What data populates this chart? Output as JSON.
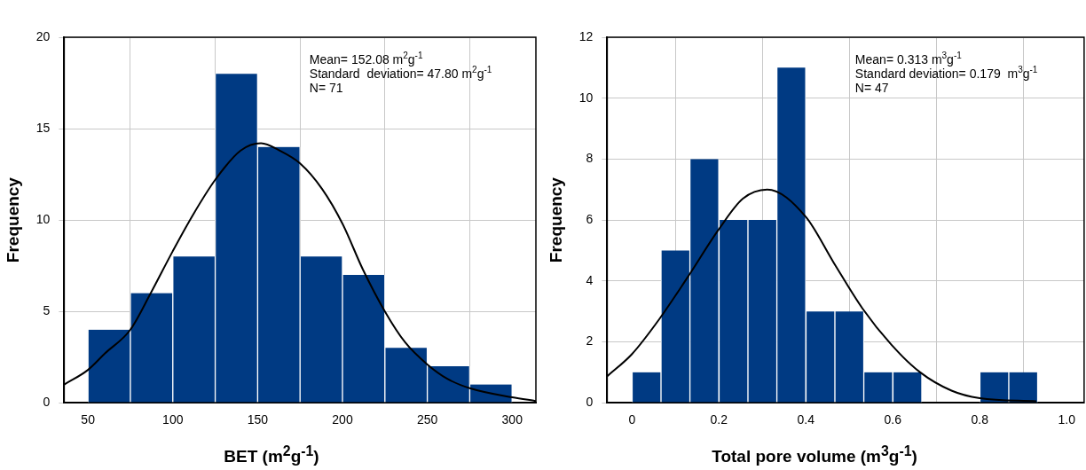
{
  "chart_data": [
    {
      "type": "histogram",
      "xlabel": "BET  (m$^{2}$g$^{-1}$)",
      "ylabel": "Frequency",
      "bins": [
        50,
        75,
        100,
        125,
        150,
        175,
        200,
        225,
        250,
        275,
        300
      ],
      "values": [
        4,
        6,
        8,
        18,
        14,
        8,
        7,
        3,
        2,
        1
      ],
      "color": "#003a83",
      "xlim": [
        36,
        314
      ],
      "ylim": [
        0,
        20
      ],
      "xticks": [
        50,
        100,
        150,
        200,
        250,
        300
      ],
      "yticks": [
        0,
        5,
        10,
        15,
        20
      ],
      "grid": true,
      "annotations": [
        "Mean= 152.08 m$^{2}$g$^{-1}$",
        "Standard  deviation= 47.80 m$^{2}$g$^{-1}$",
        "N= 71"
      ],
      "series": [
        {
          "type": "line",
          "color": "#000000",
          "x": [
            36,
            50,
            60,
            75,
            87,
            100,
            112,
            125,
            140,
            152,
            163,
            175,
            188,
            200,
            212,
            225,
            237,
            250,
            262,
            275,
            300,
            314
          ],
          "values": [
            1.0,
            1.8,
            2.7,
            4.0,
            6.0,
            8.3,
            10.3,
            12.2,
            13.8,
            14.2,
            13.8,
            13.1,
            11.7,
            9.8,
            7.3,
            5.0,
            3.3,
            2.1,
            1.3,
            0.8,
            0.3,
            0.1
          ]
        }
      ]
    },
    {
      "type": "histogram",
      "xlabel": "Total pore volume  (m$^{3}$g$^{-1}$)",
      "ylabel": "Frequency",
      "bins": [
        0,
        0.067,
        0.133,
        0.2,
        0.267,
        0.333,
        0.4,
        0.467,
        0.533,
        0.6,
        0.667,
        0.733,
        0.8,
        0.867,
        0.933
      ],
      "values": [
        1,
        5,
        8,
        6,
        6,
        11,
        3,
        3,
        1,
        1,
        0,
        0,
        1,
        1
      ],
      "color": "#003a83",
      "xlim": [
        -0.057,
        1.04
      ],
      "ylim": [
        0,
        12
      ],
      "xticks": [
        {
          "value": 0,
          "label": "0"
        },
        0.2,
        0.4,
        0.6,
        0.8,
        {
          "value": 1,
          "label": "1.0"
        }
      ],
      "yticks": [
        0,
        2,
        4,
        6,
        8,
        10,
        12
      ],
      "grid": true,
      "annotations": [
        "Mean= 0.313 m$^{3}$g$^{-1}$",
        "Standard deviation= 0.179  m$^{3}$g$^{-1}$",
        "N= 47"
      ],
      "series": [
        {
          "type": "line",
          "color": "#000000",
          "x": [
            -0.057,
            0,
            0.063,
            0.127,
            0.2,
            0.255,
            0.311,
            0.4,
            0.464,
            0.53,
            0.597,
            0.663,
            0.735,
            0.8,
            0.93
          ],
          "values": [
            0.87,
            1.6,
            2.75,
            4.1,
            5.7,
            6.7,
            7.0,
            6.1,
            4.6,
            3.1,
            1.9,
            1.0,
            0.4,
            0.15,
            0.05
          ]
        }
      ]
    }
  ]
}
